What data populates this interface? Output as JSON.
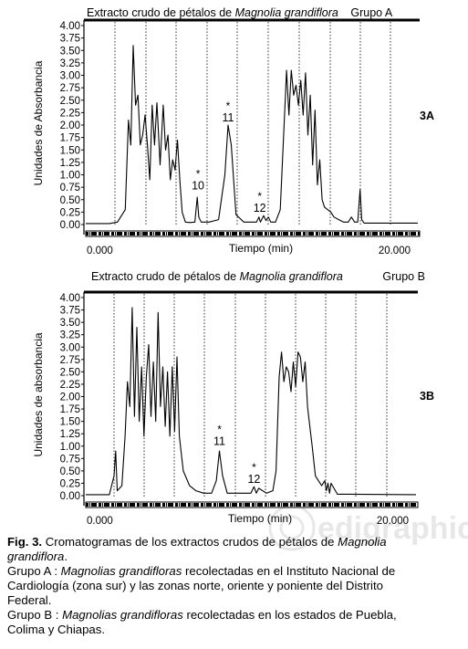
{
  "panels": [
    {
      "id": "3A",
      "title_prefix": "Extracto crudo de pétalos de ",
      "title_species": "Magnolia grandiflora",
      "group": "Grupo A",
      "label": "3A",
      "ylabel": "Unidades de Absorbancia",
      "xlabel": "Tiempo (min)",
      "x_start": "0.000",
      "x_end": "20.000",
      "peak_annotations": [
        {
          "star": "*",
          "label": "10",
          "x": 7.1,
          "y": 0.63
        },
        {
          "star": "*",
          "label": "11",
          "x": 9.0,
          "y": 2.0
        },
        {
          "star": "*",
          "label": "12",
          "x": 11.0,
          "y": 0.18
        }
      ]
    },
    {
      "id": "3B",
      "title_prefix": "Extracto crudo de pétalos de ",
      "title_species": "Magnolia grandiflora",
      "group": "Grupo B",
      "label": "3B",
      "ylabel": "Unidades de absorbancia",
      "xlabel": "Tiempo (min)",
      "x_start": "0.000",
      "x_end": "20.000",
      "peak_annotations": [
        {
          "star": "*",
          "label": "11",
          "x": 8.5,
          "y": 0.95
        },
        {
          "star": "*",
          "label": "12",
          "x": 10.7,
          "y": 0.18
        }
      ]
    }
  ],
  "caption": {
    "fig_label": "Fig. 3.",
    "lines": [
      {
        "text": " Cromatogramas de los extractos crudos de pétalos de ",
        "italic": "Magnolia"
      },
      {
        "italic_start": "grandiflora",
        "text": "."
      },
      {
        "text": "Grupo A : ",
        "italic": "Magnolias grandifloras",
        "text2": " recolectadas en el Instituto Nacional de"
      },
      {
        "text": "Cardiología (zona sur) y las zonas norte, oriente y poniente del Distrito"
      },
      {
        "text": "Federal."
      },
      {
        "text": "Grupo B : ",
        "italic": "Magnolias grandifloras",
        "text2": " recolectadas en los estados de Puebla,"
      },
      {
        "text": "Colima y Chiapas."
      }
    ]
  },
  "watermark": "edigraphic",
  "chart_data": [
    {
      "type": "line",
      "title": "Extracto crudo de pétalos de Magnolia grandiflora",
      "subtitle": "Grupo A",
      "xlabel": "Tiempo (min)",
      "ylabel": "Unidades de Absorbancia",
      "xlim": [
        0,
        21
      ],
      "ylim": [
        0,
        4.0
      ],
      "x_ticks": [
        "0.000",
        "20.000"
      ],
      "y_ticks": [
        "0.00",
        "0.25",
        "0.50",
        "0.75",
        "1.00",
        "1.25",
        "1.50",
        "1.75",
        "2.00",
        "2.25",
        "2.50",
        "2.75",
        "3.00",
        "3.25",
        "3.50",
        "3.75",
        "4.00"
      ],
      "grid": "vertical dotted",
      "series": [
        {
          "x": [
            0.0,
            1.5,
            2.0,
            2.5,
            2.7,
            2.85,
            3.0,
            3.15,
            3.3,
            3.45,
            3.6,
            3.75,
            3.9,
            4.05,
            4.2,
            4.35,
            4.5,
            4.7,
            4.9,
            5.05,
            5.2,
            5.35,
            5.5,
            5.65,
            5.8,
            5.95,
            6.1,
            6.3,
            6.6,
            6.9,
            7.05,
            7.15,
            7.3,
            7.8,
            8.4,
            8.8,
            9.0,
            9.2,
            9.5,
            10.0,
            10.8,
            10.95,
            11.05,
            11.25,
            11.4,
            11.55,
            11.7,
            12.0,
            12.3,
            12.6,
            12.7,
            12.85,
            13.0,
            13.15,
            13.3,
            13.45,
            13.6,
            13.75,
            13.9,
            14.05,
            14.2,
            14.35,
            14.5,
            14.65,
            14.8,
            14.95,
            15.1,
            15.3,
            15.5,
            15.7,
            16.0,
            16.3,
            16.6,
            16.8,
            17.0,
            17.2,
            17.35,
            17.45,
            17.6,
            18.5,
            21.0
          ],
          "y": [
            0.02,
            0.02,
            0.05,
            0.3,
            2.1,
            1.6,
            3.6,
            2.4,
            2.6,
            1.6,
            1.8,
            2.2,
            1.6,
            0.9,
            2.4,
            1.6,
            2.45,
            1.2,
            2.4,
            1.5,
            1.8,
            0.9,
            1.3,
            1.1,
            1.7,
            0.9,
            0.25,
            0.05,
            0.04,
            0.05,
            0.55,
            0.15,
            0.05,
            0.05,
            0.1,
            1.0,
            2.0,
            1.6,
            0.2,
            0.05,
            0.05,
            0.15,
            0.05,
            0.18,
            0.08,
            0.15,
            0.05,
            0.05,
            0.3,
            2.4,
            3.1,
            2.2,
            3.1,
            2.6,
            2.8,
            2.4,
            2.9,
            2.2,
            3.05,
            1.8,
            2.6,
            1.2,
            2.3,
            0.8,
            1.3,
            0.5,
            0.35,
            0.3,
            0.25,
            0.15,
            0.1,
            0.05,
            0.05,
            0.15,
            0.05,
            0.05,
            0.7,
            0.1,
            0.03,
            0.03,
            0.03
          ]
        }
      ]
    },
    {
      "type": "line",
      "title": "Extracto crudo de pétalos de Magnolia grandiflora",
      "subtitle": "Grupo B",
      "xlabel": "Tiempo (min)",
      "ylabel": "Unidades de absorbancia",
      "xlim": [
        0,
        21
      ],
      "ylim": [
        0,
        4.0
      ],
      "x_ticks": [
        "0.000",
        "20.000"
      ],
      "y_ticks": [
        "0.00",
        "0.25",
        "0.50",
        "0.75",
        "1.00",
        "1.25",
        "1.50",
        "1.75",
        "2.00",
        "2.25",
        "2.50",
        "2.75",
        "3.00",
        "3.25",
        "3.50",
        "3.75",
        "4.00"
      ],
      "grid": "vertical dotted",
      "series": [
        {
          "x": [
            0.0,
            1.5,
            1.8,
            1.9,
            2.0,
            2.3,
            2.5,
            2.65,
            2.8,
            2.95,
            3.1,
            3.25,
            3.4,
            3.55,
            3.7,
            3.85,
            4.0,
            4.15,
            4.3,
            4.45,
            4.6,
            4.75,
            4.9,
            5.05,
            5.2,
            5.35,
            5.5,
            5.65,
            5.8,
            5.95,
            6.2,
            6.6,
            7.0,
            7.5,
            8.0,
            8.3,
            8.5,
            8.7,
            9.0,
            9.6,
            10.3,
            10.5,
            10.7,
            10.85,
            11.0,
            11.5,
            11.9,
            12.1,
            12.3,
            12.45,
            12.6,
            12.75,
            12.9,
            13.05,
            13.2,
            13.35,
            13.5,
            13.65,
            13.8,
            13.95,
            14.1,
            14.25,
            14.4,
            14.6,
            14.8,
            15.0,
            15.2,
            15.3,
            15.4,
            15.5,
            15.6,
            16.0,
            21.0
          ],
          "y": [
            0.02,
            0.02,
            0.4,
            0.9,
            0.1,
            0.2,
            1.2,
            2.3,
            1.8,
            3.8,
            1.6,
            3.4,
            1.5,
            2.6,
            1.2,
            2.4,
            3.05,
            1.6,
            2.7,
            1.5,
            3.7,
            1.8,
            2.6,
            1.4,
            2.5,
            1.2,
            2.6,
            1.3,
            2.8,
            1.2,
            0.5,
            0.2,
            0.1,
            0.05,
            0.05,
            0.3,
            0.9,
            0.4,
            0.05,
            0.05,
            0.05,
            0.05,
            0.18,
            0.05,
            0.15,
            0.05,
            0.1,
            0.5,
            2.4,
            2.9,
            2.3,
            2.6,
            2.5,
            2.1,
            2.7,
            2.2,
            2.9,
            2.8,
            2.3,
            2.7,
            1.8,
            1.4,
            1.0,
            0.4,
            0.3,
            0.2,
            0.3,
            0.1,
            0.25,
            0.05,
            0.25,
            0.03,
            0.02
          ]
        }
      ]
    }
  ]
}
